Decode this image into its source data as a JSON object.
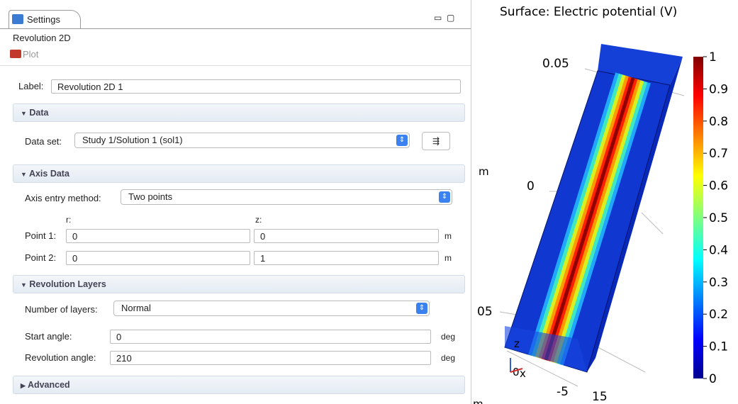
{
  "settings": {
    "tab": "Settings",
    "title": "Revolution 2D",
    "toolbar": "Plot",
    "label": {
      "name": "Label:",
      "value": "Revolution 2D 1"
    },
    "data": {
      "header": "Data",
      "dataset_label": "Data set:",
      "dataset": "Study 1/Solution 1 (sol1)"
    },
    "axis_data": {
      "header": "Axis Data",
      "method_label": "Axis entry method:",
      "method": "Two points",
      "columns": [
        "r:",
        "z:"
      ],
      "points": [
        {
          "label": "Point 1:",
          "r": "0",
          "z": "0",
          "unit": "m"
        },
        {
          "label": "Point 2:",
          "r": "0",
          "z": "1",
          "unit": "m"
        }
      ]
    },
    "revolution_layers": {
      "header": "Revolution Layers",
      "layers_label": "Number of layers:",
      "layers": "Normal",
      "start_label": "Start angle:",
      "start": "0",
      "start_unit": "deg",
      "angle_label": "Revolution angle:",
      "angle": "210",
      "angle_unit": "deg"
    },
    "advanced": {
      "header": "Advanced"
    }
  },
  "plot": {
    "title": "Surface: Electric potential (V)",
    "axis_labels": [
      "0.05",
      "0",
      "05",
      "m",
      "m",
      "z",
      "0",
      "x",
      "-5",
      "15"
    ],
    "colorbar_ticks": [
      1,
      0.9,
      0.8,
      0.7,
      0.6,
      0.5,
      0.4,
      0.3,
      0.2,
      0.1,
      0
    ]
  }
}
